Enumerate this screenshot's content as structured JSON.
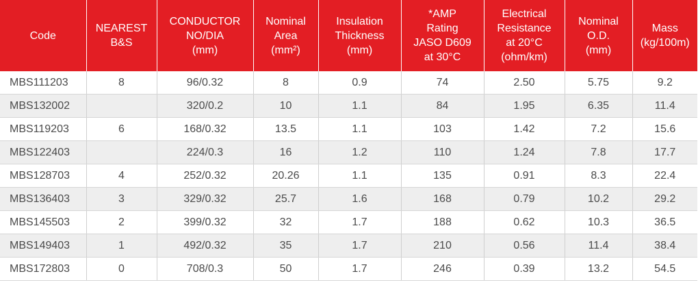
{
  "table": {
    "headers": [
      [
        "Code"
      ],
      [
        "NEAREST",
        "B&S"
      ],
      [
        "CONDUCTOR",
        "NO/DIA",
        "(mm)"
      ],
      [
        "Nominal",
        "Area",
        "(mm²)"
      ],
      [
        "Insulation",
        "Thickness",
        "(mm)"
      ],
      [
        "*AMP",
        "Rating",
        "JASO D609",
        "at 30°C"
      ],
      [
        "Electrical",
        "Resistance",
        "at 20°C",
        "(ohm/km)"
      ],
      [
        "Nominal",
        "O.D.",
        "(mm)"
      ],
      [
        "Mass",
        "(kg/100m)"
      ]
    ],
    "rows": [
      [
        "MBS111203",
        "8",
        "96/0.32",
        "8",
        "0.9",
        "74",
        "2.50",
        "5.75",
        "9.2"
      ],
      [
        "MBS132002",
        "",
        "320/0.2",
        "10",
        "1.1",
        "84",
        "1.95",
        "6.35",
        "11.4"
      ],
      [
        "MBS119203",
        "6",
        "168/0.32",
        "13.5",
        "1.1",
        "103",
        "1.42",
        "7.2",
        "15.6"
      ],
      [
        "MBS122403",
        "",
        "224/0.3",
        "16",
        "1.2",
        "110",
        "1.24",
        "7.8",
        "17.7"
      ],
      [
        "MBS128703",
        "4",
        "252/0.32",
        "20.26",
        "1.1",
        "135",
        "0.91",
        "8.3",
        "22.4"
      ],
      [
        "MBS136403",
        "3",
        "329/0.32",
        "25.7",
        "1.6",
        "168",
        "0.79",
        "10.2",
        "29.2"
      ],
      [
        "MBS145503",
        "2",
        "399/0.32",
        "32",
        "1.7",
        "188",
        "0.62",
        "10.3",
        "36.5"
      ],
      [
        "MBS149403",
        "1",
        "492/0.32",
        "35",
        "1.7",
        "210",
        "0.56",
        "11.4",
        "38.4"
      ],
      [
        "MBS172803",
        "0",
        "708/0.3",
        "50",
        "1.7",
        "246",
        "0.39",
        "13.2",
        "54.5"
      ]
    ]
  },
  "colors": {
    "header_bg": "#e31e24",
    "header_text": "#ffffff",
    "row_alt_bg": "#eeeeee",
    "cell_text": "#4a4a4a"
  }
}
